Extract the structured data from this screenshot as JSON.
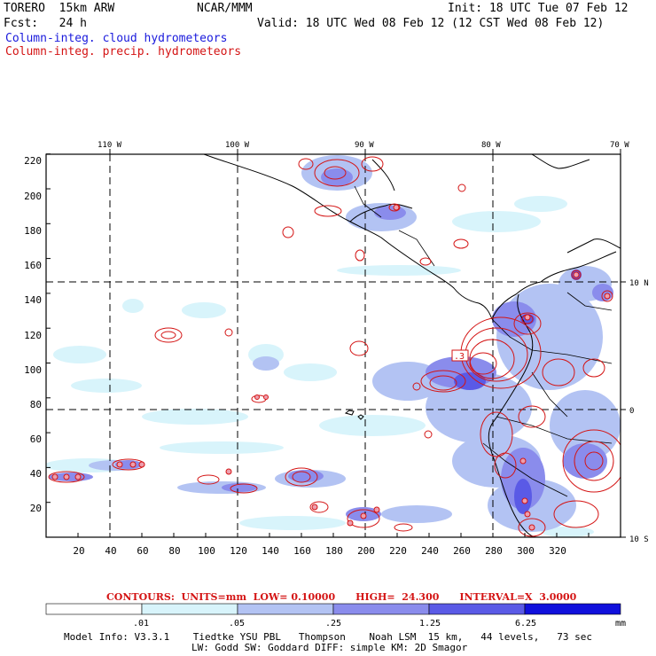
{
  "header": {
    "model": "TORERO  15km ARW",
    "center": "NCAR/MMM",
    "init": "Init: 18 UTC Tue 07 Feb 12",
    "fcst": "Fcst:   24 h",
    "valid": "Valid: 18 UTC Wed 08 Feb 12 (12 CST Wed 08 Feb 12)",
    "line_cloud": "Column-integ. cloud hydrometeors",
    "line_precip": "Column-integ. precip. hydrometeors"
  },
  "axes": {
    "top_lon": [
      "110 W",
      "100 W",
      "90 W",
      "80 W",
      "70 W"
    ],
    "right_lat": [
      "10 N",
      "0",
      "10 S"
    ],
    "y_ticks": [
      "220",
      "200",
      "180",
      "160",
      "140",
      "120",
      "100",
      "80",
      "60",
      "40",
      "20"
    ],
    "x_ticks": [
      "20",
      "40",
      "60",
      "80",
      "100",
      "120",
      "140",
      "160",
      "180",
      "200",
      "220",
      "240",
      "260",
      "280",
      "300",
      "320"
    ]
  },
  "contour_label": ".3",
  "contours_info": "CONTOURS:  UNITS=mm  LOW= 0.10000      HIGH=  24.300      INTERVAL=X  3.0000",
  "colorbar": {
    "labels": [
      ".01",
      ".05",
      ".25",
      "1.25",
      "6.25"
    ],
    "unit": "mm",
    "colors": [
      "#ffffff",
      "#d8f4fb",
      "#b3c3f3",
      "#8a8cec",
      "#5a5ae6",
      "#3030e0",
      "#1010dc"
    ]
  },
  "footer": {
    "line1": "Model Info: V3.3.1    Tiedtke YSU PBL   Thompson    Noah LSM  15 km,   44 levels,   73 sec",
    "line2": "LW: Godd SW: Goddard DIFF: simple KM: 2D Smagor"
  }
}
